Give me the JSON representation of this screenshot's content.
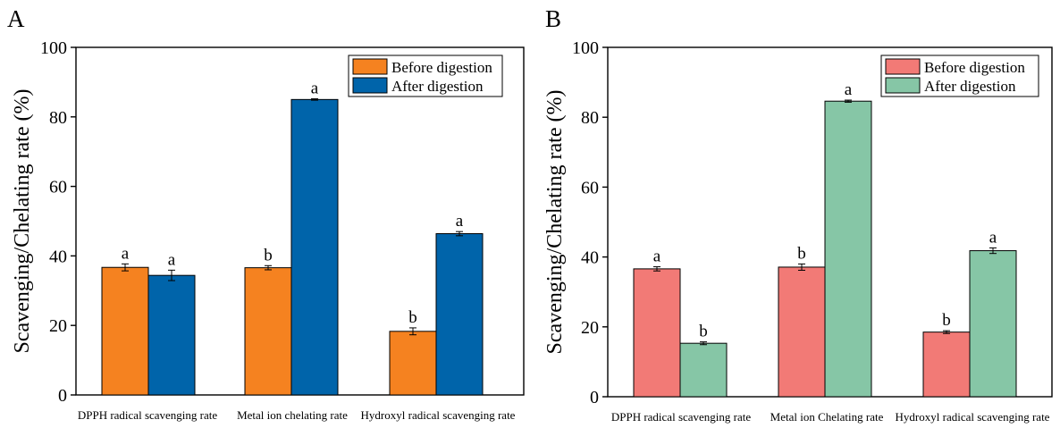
{
  "panels": [
    {
      "panel_label": "A",
      "legend_position": "top-right",
      "colors": {
        "Before digestion": "#F58220",
        "After digestion": "#0064AA"
      },
      "chart_data": {
        "type": "bar",
        "title": "",
        "xlabel": "",
        "ylabel": "Scavenging/Chelating rate (%)",
        "ylim": [
          0,
          100
        ],
        "yticks": [
          0,
          20,
          40,
          60,
          80,
          100
        ],
        "grid": false,
        "categories": [
          "DPPH radical scavenging rate",
          "Metal ion chelating rate",
          "Hydroxyl radical scavenging rate"
        ],
        "series": [
          {
            "name": "Before digestion",
            "values": [
              36.7,
              36.6,
              18.3
            ],
            "errors": [
              1.0,
              0.6,
              1.0
            ],
            "labels": [
              "a",
              "b",
              "b"
            ]
          },
          {
            "name": "After digestion",
            "values": [
              34.4,
              85.0,
              46.4
            ],
            "errors": [
              1.5,
              0.2,
              0.6
            ],
            "labels": [
              "a",
              "a",
              "a"
            ]
          }
        ]
      }
    },
    {
      "panel_label": "B",
      "legend_position": "top-right",
      "colors": {
        "Before digestion": "#F27A76",
        "After digestion": "#86C6A6"
      },
      "chart_data": {
        "type": "bar",
        "title": "",
        "xlabel": "",
        "ylabel": "Scavenging/Chelating rate (%)",
        "ylim": [
          0,
          100
        ],
        "yticks": [
          0,
          20,
          40,
          60,
          80,
          100
        ],
        "grid": false,
        "categories": [
          "DPPH radical scavenging rate",
          "Metal ion Chelating rate",
          "Hydroxyl radical scavenging rate"
        ],
        "series": [
          {
            "name": "Before digestion",
            "values": [
              36.6,
              37.1,
              18.5
            ],
            "errors": [
              0.6,
              0.9,
              0.4
            ],
            "labels": [
              "a",
              "b",
              "b"
            ]
          },
          {
            "name": "After digestion",
            "values": [
              15.3,
              84.6,
              41.8
            ],
            "errors": [
              0.4,
              0.3,
              0.8
            ],
            "labels": [
              "b",
              "a",
              "a"
            ]
          }
        ]
      }
    }
  ]
}
